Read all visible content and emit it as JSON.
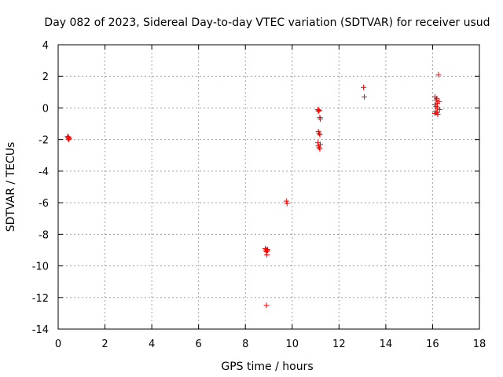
{
  "chart_data": {
    "type": "scatter",
    "title": "Day 082 of 2023, Sidereal Day-to-day VTEC variation (SDTVAR) for receiver usud",
    "xlabel": "GPS time / hours",
    "ylabel": "SDTVAR / TECUs",
    "xlim": [
      0,
      18
    ],
    "ylim": [
      -14,
      4
    ],
    "xticks": [
      0,
      2,
      4,
      6,
      8,
      10,
      12,
      14,
      16,
      18
    ],
    "yticks": [
      -14,
      -12,
      -10,
      -8,
      -6,
      -4,
      -2,
      0,
      2,
      4
    ],
    "grid": true,
    "marker": "+",
    "color": "#ff0000",
    "series": [
      {
        "name": "SDTVAR",
        "points": [
          [
            0.4,
            -1.8
          ],
          [
            0.42,
            -1.9
          ],
          [
            0.44,
            -2.0
          ],
          [
            0.45,
            -1.85
          ],
          [
            0.47,
            -1.95
          ],
          [
            8.85,
            -8.9
          ],
          [
            8.88,
            -9.0
          ],
          [
            8.9,
            -9.1
          ],
          [
            8.92,
            -9.3
          ],
          [
            8.93,
            -8.95
          ],
          [
            8.95,
            -9.0
          ],
          [
            8.9,
            -12.5
          ],
          [
            9.75,
            -5.9
          ],
          [
            9.78,
            -6.05
          ],
          [
            11.1,
            -0.1
          ],
          [
            11.12,
            -0.2
          ],
          [
            11.15,
            -0.15
          ],
          [
            11.18,
            -0.6
          ],
          [
            11.2,
            -0.7
          ],
          [
            11.12,
            -1.5
          ],
          [
            11.15,
            -1.6
          ],
          [
            11.18,
            -1.7
          ],
          [
            11.1,
            -2.2
          ],
          [
            11.12,
            -2.4
          ],
          [
            11.15,
            -2.5
          ],
          [
            11.18,
            -2.6
          ],
          [
            11.2,
            -2.3
          ],
          [
            13.05,
            1.3
          ],
          [
            13.08,
            0.7
          ],
          [
            16.1,
            0.7
          ],
          [
            16.15,
            0.5
          ],
          [
            16.18,
            0.6
          ],
          [
            16.2,
            0.3
          ],
          [
            16.1,
            0.2
          ],
          [
            16.15,
            0.1
          ],
          [
            16.2,
            0.0
          ],
          [
            16.12,
            -0.2
          ],
          [
            16.18,
            -0.3
          ],
          [
            16.22,
            -0.4
          ],
          [
            16.1,
            -0.35
          ],
          [
            16.25,
            2.1
          ],
          [
            16.28,
            0.4
          ],
          [
            16.3,
            -0.1
          ]
        ]
      }
    ]
  }
}
